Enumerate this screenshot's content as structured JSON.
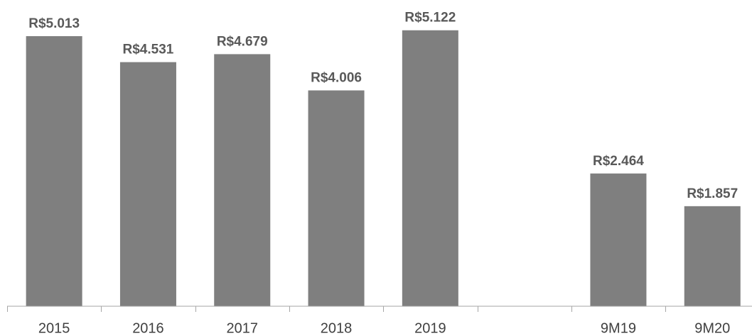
{
  "chart_data": {
    "type": "bar",
    "categories": [
      "2015",
      "2016",
      "2017",
      "2018",
      "2019",
      null,
      "9M19",
      "9M20"
    ],
    "values": [
      5013,
      4531,
      4679,
      4006,
      5122,
      null,
      2464,
      1857
    ],
    "value_labels": [
      "R$5.013",
      "R$4.531",
      "R$4.679",
      "R$4.006",
      "R$5.122",
      null,
      "R$2.464",
      "R$1.857"
    ],
    "color": "#7f7f7f",
    "ylim": [
      0,
      5500
    ]
  }
}
